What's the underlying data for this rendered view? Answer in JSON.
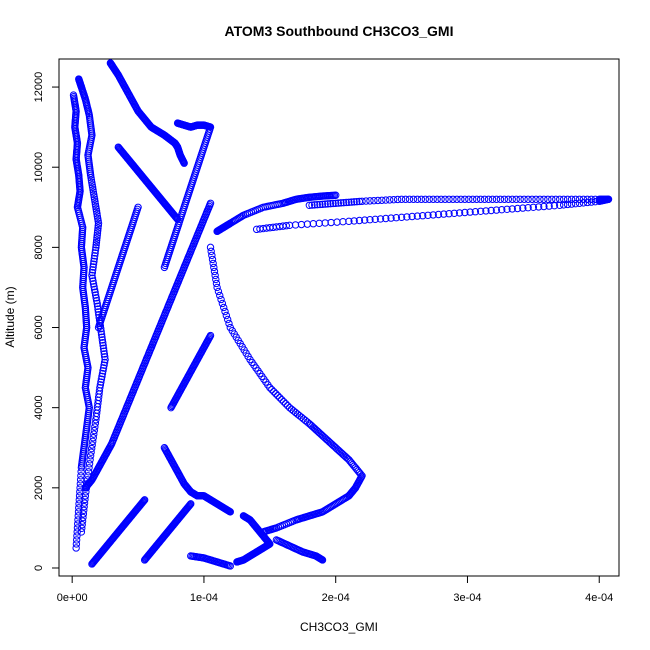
{
  "chart_data": {
    "type": "scatter",
    "title": "ATOM3 Southbound CH3CO3_GMI",
    "xlabel": "CH3CO3_GMI",
    "ylabel": "Altitude (m)",
    "xlim": [
      -1e-05,
      0.000415
    ],
    "ylim": [
      -200,
      12700
    ],
    "x_ticks": [
      0,
      0.0001,
      0.0002,
      0.0003,
      0.0004
    ],
    "x_tick_labels": [
      "0e+00",
      "1e-04",
      "2e-04",
      "3e-04",
      "4e-04"
    ],
    "y_ticks": [
      0,
      2000,
      4000,
      6000,
      8000,
      10000,
      12000
    ],
    "y_tick_labels": [
      "0",
      "2000",
      "4000",
      "6000",
      "8000",
      "10000",
      "12000"
    ],
    "marker": "open-circle",
    "color": "#0000ff",
    "grid": false,
    "series": [
      {
        "x": [
          1e-06,
          3e-06,
          2e-06,
          4e-06,
          3e-06,
          5e-06,
          6e-06,
          4e-06,
          8e-06,
          7e-06,
          9e-06,
          8e-06,
          1e-05,
          1.1e-05,
          9e-06,
          1.2e-05,
          1e-05,
          1.3e-05,
          1.1e-05,
          9e-06,
          7e-06,
          5e-06,
          3e-06
        ],
        "y": [
          11800,
          11400,
          11000,
          10600,
          10200,
          9800,
          9400,
          9000,
          8500,
          8000,
          7500,
          7000,
          6500,
          6000,
          5500,
          5000,
          4500,
          4000,
          3500,
          3000,
          2500,
          1500,
          500
        ]
      },
      {
        "x": [
          5e-06,
          7e-06,
          1e-05,
          1.3e-05,
          1.5e-05,
          1.2e-05,
          1.4e-05,
          1.7e-05,
          2e-05,
          1.8e-05,
          1.5e-05,
          1.9e-05,
          2.2e-05,
          2.5e-05,
          2.1e-05,
          1.8e-05,
          1.4e-05,
          1e-05,
          7e-06
        ],
        "y": [
          12200,
          12000,
          11700,
          11300,
          10800,
          10300,
          9800,
          9200,
          8600,
          8000,
          7300,
          6600,
          5900,
          5200,
          4500,
          3700,
          2800,
          1800,
          900
        ]
      },
      {
        "x": [
          2.9e-05,
          3.1e-05,
          3.5e-05,
          4e-05,
          4.5e-05,
          5e-05,
          5.5e-05,
          6e-05,
          6.5e-05,
          7e-05,
          7.4e-05,
          7.8e-05,
          8e-05,
          8.2e-05,
          8.5e-05
        ],
        "y": [
          12600,
          12500,
          12300,
          12000,
          11700,
          11400,
          11200,
          11000,
          10900,
          10800,
          10700,
          10600,
          10500,
          10300,
          10100
        ]
      },
      {
        "x": [
          8e-05,
          8.5e-05,
          9e-05,
          9.5e-05,
          0.0001,
          0.000105,
          0.0001,
          9.5e-05,
          9e-05,
          8.5e-05,
          8e-05,
          7.5e-05,
          7e-05
        ],
        "y": [
          11100,
          11050,
          11000,
          11050,
          11050,
          11000,
          10500,
          10000,
          9500,
          9000,
          8500,
          8000,
          7500
        ]
      },
      {
        "x": [
          7e-05,
          7.5e-05,
          8e-05,
          8.5e-05,
          9e-05,
          9.5e-05,
          0.0001,
          0.000105,
          0.00011,
          0.000115,
          0.00012
        ],
        "y": [
          3000,
          2700,
          2400,
          2100,
          1900,
          1800,
          1800,
          1700,
          1600,
          1500,
          1400
        ]
      },
      {
        "x": [
          0.000105,
          0.00011,
          0.00012,
          0.000135,
          0.00015,
          0.000165,
          0.00018,
          0.00019,
          0.0002,
          0.00021,
          0.00022,
          0.000215,
          0.00021,
          0.0002,
          0.00019,
          0.00018,
          0.00017,
          0.000155,
          0.000145
        ],
        "y": [
          8000,
          7000,
          6000,
          5200,
          4500,
          4000,
          3600,
          3300,
          3000,
          2700,
          2300,
          2000,
          1800,
          1600,
          1400,
          1300,
          1200,
          1000,
          900
        ]
      },
      {
        "x": [
          0.000155,
          0.000165,
          0.000175,
          0.000185,
          0.00019
        ],
        "y": [
          700,
          550,
          400,
          300,
          200
        ]
      },
      {
        "x": [
          0.00013,
          0.000135,
          0.00014,
          0.000145,
          0.00015,
          0.000145,
          0.00014,
          0.000135,
          0.00013,
          0.000125
        ],
        "y": [
          1300,
          1200,
          1000,
          800,
          600,
          500,
          400,
          300,
          200,
          150
        ]
      },
      {
        "x": [
          9e-05,
          0.0001,
          0.00011,
          0.00012
        ],
        "y": [
          300,
          250,
          150,
          50
        ]
      },
      {
        "x": [
          0.00011,
          0.000115,
          0.00012,
          0.00013,
          0.000145,
          0.00016,
          0.00017,
          0.00018,
          0.00019,
          0.0002
        ],
        "y": [
          8400,
          8500,
          8600,
          8800,
          9000,
          9100,
          9200,
          9250,
          9280,
          9300
        ]
      },
      {
        "x": [
          0.00014,
          0.000165,
          0.00021,
          0.00025,
          0.00029,
          0.00033,
          0.00037,
          0.0004,
          0.000407
        ],
        "y": [
          8450,
          8550,
          8650,
          8750,
          8850,
          8950,
          9050,
          9150,
          9200
        ]
      },
      {
        "x": [
          0.00018,
          0.0002,
          0.00022,
          0.00025,
          0.00028,
          0.00031,
          0.00034,
          0.00037,
          0.0004,
          0.000407
        ],
        "y": [
          9050,
          9100,
          9150,
          9200,
          9200,
          9200,
          9200,
          9200,
          9200,
          9200
        ]
      },
      {
        "x": [
          1e-05,
          1.5e-05,
          2e-05,
          2.5e-05,
          3e-05,
          3.5e-05,
          4e-05,
          4.5e-05,
          5e-05,
          5.5e-05,
          6e-05
        ],
        "y": [
          2000,
          2200,
          2500,
          2800,
          3100,
          3500,
          3900,
          4300,
          4700,
          5100,
          5500
        ]
      },
      {
        "x": [
          6e-05,
          6.5e-05,
          7e-05,
          7.5e-05,
          8e-05,
          8.5e-05,
          9e-05,
          9.5e-05,
          0.0001,
          0.000105
        ],
        "y": [
          5500,
          5900,
          6300,
          6700,
          7100,
          7500,
          7900,
          8300,
          8700,
          9100
        ]
      },
      {
        "x": [
          5.5e-05,
          6e-05,
          6.5e-05,
          7e-05,
          7.5e-05,
          8e-05,
          8.5e-05,
          9e-05
        ],
        "y": [
          200,
          400,
          600,
          800,
          1000,
          1200,
          1400,
          1600
        ]
      },
      {
        "x": [
          1.5e-05,
          2e-05,
          2.5e-05,
          3e-05,
          3.5e-05,
          4e-05,
          4.5e-05,
          5e-05,
          5.5e-05
        ],
        "y": [
          100,
          300,
          500,
          700,
          900,
          1100,
          1300,
          1500,
          1700
        ]
      },
      {
        "x": [
          3.5e-05,
          4e-05,
          4.5e-05,
          5e-05,
          5.5e-05,
          6e-05,
          6.5e-05,
          7e-05,
          7.5e-05,
          8e-05
        ],
        "y": [
          10500,
          10300,
          10100,
          9900,
          9700,
          9500,
          9300,
          9100,
          8900,
          8700
        ]
      },
      {
        "x": [
          2e-05,
          2.5e-05,
          3e-05,
          3.5e-05,
          4e-05,
          4.5e-05,
          5e-05
        ],
        "y": [
          6000,
          6500,
          7000,
          7500,
          8000,
          8500,
          9000
        ]
      },
      {
        "x": [
          7.5e-05,
          8e-05,
          8.5e-05,
          9e-05,
          9.5e-05,
          0.0001,
          0.000105
        ],
        "y": [
          4000,
          4300,
          4600,
          4900,
          5200,
          5500,
          5800
        ]
      }
    ]
  }
}
